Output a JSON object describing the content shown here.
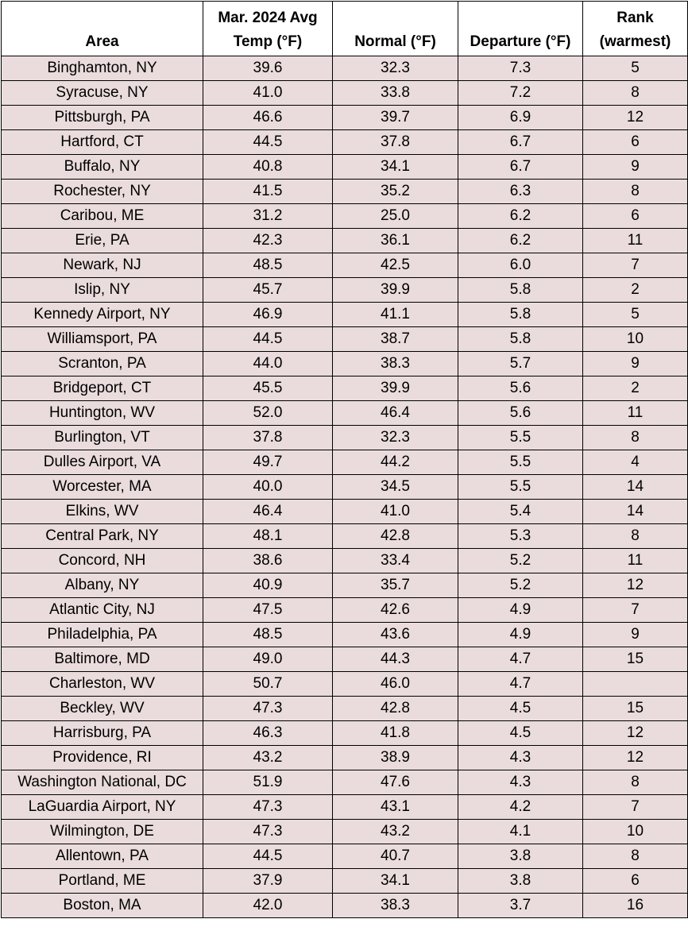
{
  "headers": {
    "area": "Area",
    "avg_line1": "Mar. 2024 Avg",
    "avg_line2": "Temp (°F)",
    "normal": "Normal  (°F)",
    "departure": "Departure (°F)",
    "rank_line1": "Rank",
    "rank_line2": "(warmest)"
  },
  "colors": {
    "row_fill": "#eadcdd",
    "header_fill": "#ffffff",
    "border": "#000000"
  },
  "rows": [
    {
      "area": "Binghamton, NY",
      "avg": "39.6",
      "normal": "32.3",
      "departure": "7.3",
      "rank": "5"
    },
    {
      "area": "Syracuse, NY",
      "avg": "41.0",
      "normal": "33.8",
      "departure": "7.2",
      "rank": "8"
    },
    {
      "area": "Pittsburgh, PA",
      "avg": "46.6",
      "normal": "39.7",
      "departure": "6.9",
      "rank": "12"
    },
    {
      "area": "Hartford, CT",
      "avg": "44.5",
      "normal": "37.8",
      "departure": "6.7",
      "rank": "6"
    },
    {
      "area": "Buffalo, NY",
      "avg": "40.8",
      "normal": "34.1",
      "departure": "6.7",
      "rank": "9"
    },
    {
      "area": "Rochester, NY",
      "avg": "41.5",
      "normal": "35.2",
      "departure": "6.3",
      "rank": "8"
    },
    {
      "area": "Caribou, ME",
      "avg": "31.2",
      "normal": "25.0",
      "departure": "6.2",
      "rank": "6"
    },
    {
      "area": "Erie, PA",
      "avg": "42.3",
      "normal": "36.1",
      "departure": "6.2",
      "rank": "11"
    },
    {
      "area": "Newark, NJ",
      "avg": "48.5",
      "normal": "42.5",
      "departure": "6.0",
      "rank": "7"
    },
    {
      "area": "Islip, NY",
      "avg": "45.7",
      "normal": "39.9",
      "departure": "5.8",
      "rank": "2"
    },
    {
      "area": "Kennedy Airport, NY",
      "avg": "46.9",
      "normal": "41.1",
      "departure": "5.8",
      "rank": "5"
    },
    {
      "area": "Williamsport, PA",
      "avg": "44.5",
      "normal": "38.7",
      "departure": "5.8",
      "rank": "10"
    },
    {
      "area": "Scranton, PA",
      "avg": "44.0",
      "normal": "38.3",
      "departure": "5.7",
      "rank": "9"
    },
    {
      "area": "Bridgeport, CT",
      "avg": "45.5",
      "normal": "39.9",
      "departure": "5.6",
      "rank": "2"
    },
    {
      "area": "Huntington, WV",
      "avg": "52.0",
      "normal": "46.4",
      "departure": "5.6",
      "rank": "11"
    },
    {
      "area": "Burlington, VT",
      "avg": "37.8",
      "normal": "32.3",
      "departure": "5.5",
      "rank": "8"
    },
    {
      "area": "Dulles Airport, VA",
      "avg": "49.7",
      "normal": "44.2",
      "departure": "5.5",
      "rank": "4"
    },
    {
      "area": "Worcester, MA",
      "avg": "40.0",
      "normal": "34.5",
      "departure": "5.5",
      "rank": "14"
    },
    {
      "area": "Elkins, WV",
      "avg": "46.4",
      "normal": "41.0",
      "departure": "5.4",
      "rank": "14"
    },
    {
      "area": "Central Park, NY",
      "avg": "48.1",
      "normal": "42.8",
      "departure": "5.3",
      "rank": "8"
    },
    {
      "area": "Concord, NH",
      "avg": "38.6",
      "normal": "33.4",
      "departure": "5.2",
      "rank": "11"
    },
    {
      "area": "Albany, NY",
      "avg": "40.9",
      "normal": "35.7",
      "departure": "5.2",
      "rank": "12"
    },
    {
      "area": "Atlantic City, NJ",
      "avg": "47.5",
      "normal": "42.6",
      "departure": "4.9",
      "rank": "7"
    },
    {
      "area": "Philadelphia, PA",
      "avg": "48.5",
      "normal": "43.6",
      "departure": "4.9",
      "rank": "9"
    },
    {
      "area": "Baltimore, MD",
      "avg": "49.0",
      "normal": "44.3",
      "departure": "4.7",
      "rank": "15"
    },
    {
      "area": "Charleston, WV",
      "avg": "50.7",
      "normal": "46.0",
      "departure": "4.7",
      "rank": ""
    },
    {
      "area": "Beckley, WV",
      "avg": "47.3",
      "normal": "42.8",
      "departure": "4.5",
      "rank": "15"
    },
    {
      "area": "Harrisburg, PA",
      "avg": "46.3",
      "normal": "41.8",
      "departure": "4.5",
      "rank": "12"
    },
    {
      "area": "Providence, RI",
      "avg": "43.2",
      "normal": "38.9",
      "departure": "4.3",
      "rank": "12"
    },
    {
      "area": "Washington National, DC",
      "avg": "51.9",
      "normal": "47.6",
      "departure": "4.3",
      "rank": "8"
    },
    {
      "area": "LaGuardia Airport, NY",
      "avg": "47.3",
      "normal": "43.1",
      "departure": "4.2",
      "rank": "7"
    },
    {
      "area": "Wilmington, DE",
      "avg": "47.3",
      "normal": "43.2",
      "departure": "4.1",
      "rank": "10"
    },
    {
      "area": "Allentown, PA",
      "avg": "44.5",
      "normal": "40.7",
      "departure": "3.8",
      "rank": "8"
    },
    {
      "area": "Portland, ME",
      "avg": "37.9",
      "normal": "34.1",
      "departure": "3.8",
      "rank": "6"
    },
    {
      "area": "Boston, MA",
      "avg": "42.0",
      "normal": "38.3",
      "departure": "3.7",
      "rank": "16"
    }
  ]
}
